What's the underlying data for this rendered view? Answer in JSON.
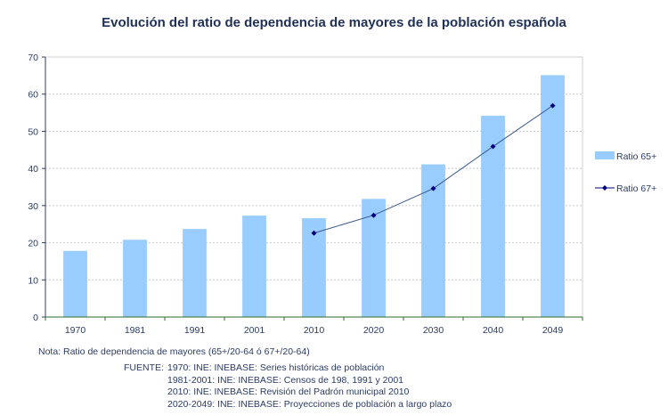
{
  "chart_data": {
    "type": "bar",
    "title": "Evolución del ratio de dependencia de mayores de la población española",
    "xlabel": "",
    "ylabel": "",
    "categories": [
      "1970",
      "1981",
      "1991",
      "2001",
      "2010",
      "2020",
      "2030",
      "2040",
      "2049"
    ],
    "ylim": [
      0,
      70
    ],
    "yticks": [
      0,
      10,
      20,
      30,
      40,
      50,
      60,
      70
    ],
    "grid": true,
    "legend_position": "right",
    "series": [
      {
        "name": "Ratio 65+",
        "type": "bar",
        "color": "#99ccff",
        "values": [
          17.8,
          20.8,
          23.7,
          27.3,
          26.6,
          31.8,
          41.1,
          54.2,
          65.1
        ]
      },
      {
        "name": "Ratio 67+",
        "type": "line",
        "color": "#000080",
        "values": [
          null,
          null,
          null,
          null,
          22.6,
          27.4,
          34.6,
          45.9,
          56.9
        ]
      }
    ]
  },
  "notes": {
    "nota": "Nota: Ratio de dependencia de mayores (65+/20-64 ó 67+/20-64)",
    "fuente_label": "FUENTE:",
    "fuente_lines": [
      "1970: INE: INEBASE: Series históricas de población",
      "1981-2001: INE: INEBASE: Censos de 198, 1991 y 2001",
      "2010: INE: INEBASE: Revisión del Padrón municipal 2010",
      "2020-2049: INE: INEBASE: Proyecciones de población a largo plazo"
    ]
  }
}
